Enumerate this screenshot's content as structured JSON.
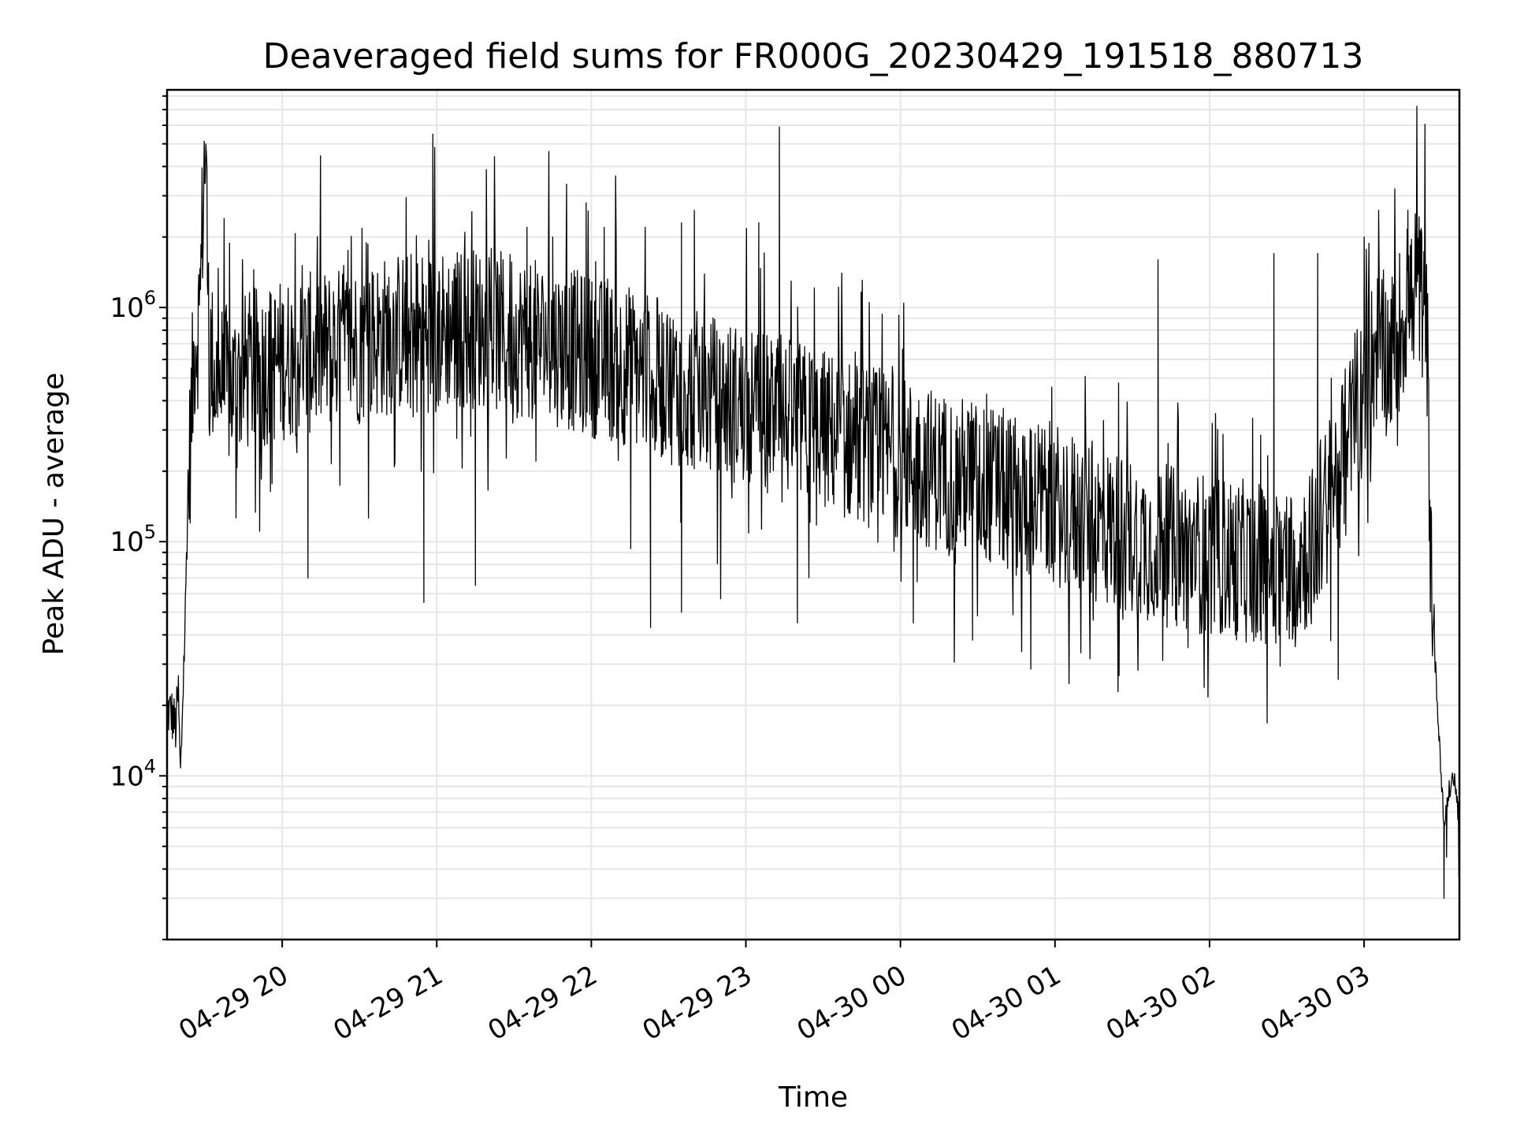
{
  "chart_data": {
    "type": "line",
    "title": "Deaveraged field sums for FR000G_20230429_191518_880713",
    "xlabel": "Time",
    "ylabel": "Peak ADU - average",
    "yscale": "log",
    "ylim": [
      2000,
      8500000
    ],
    "xlim": [
      "04-29 19:15:18",
      "04-30 03:37:00"
    ],
    "x_ticks": [
      "04-29 20",
      "04-29 21",
      "04-29 22",
      "04-29 23",
      "04-30 00",
      "04-30 01",
      "04-30 02",
      "04-30 03"
    ],
    "y_ticks": [
      {
        "base": "10",
        "exp": "4",
        "value": 10000
      },
      {
        "base": "10",
        "exp": "5",
        "value": 100000
      },
      {
        "base": "10",
        "exp": "6",
        "value": 1000000
      }
    ],
    "grid": true,
    "line_color": "#000000",
    "series": [
      {
        "points": [
          [
            "04-29 19:15:20",
            19000
          ],
          [
            "04-29 19:17:00",
            18500
          ],
          [
            "04-29 19:18:40",
            16000
          ],
          [
            "04-29 19:19:40",
            23000
          ],
          [
            "04-29 19:20:30",
            9500
          ],
          [
            "04-29 19:21:30",
            24000
          ],
          [
            "04-29 19:22:20",
            45000
          ],
          [
            "04-29 19:23:10",
            130000
          ],
          [
            "04-29 19:24:30",
            300000
          ],
          [
            "04-29 19:26:00",
            700000
          ],
          [
            "04-29 19:28:00",
            900000
          ],
          [
            "04-29 19:29:30",
            3500000
          ],
          [
            "04-29 19:30:20",
            4800000
          ],
          [
            "04-29 19:31:30",
            700000
          ],
          [
            "04-29 19:34:00",
            500000
          ],
          [
            "04-29 19:40:00",
            450000
          ],
          [
            "04-29 19:45:00",
            520000
          ],
          [
            "04-29 19:50:00",
            550000
          ],
          [
            "04-29 20:00:00",
            600000
          ],
          [
            "04-29 20:15:00",
            650000
          ],
          [
            "04-29 20:30:00",
            700000
          ],
          [
            "04-29 20:45:00",
            780000
          ],
          [
            "04-29 21:00:00",
            800000
          ],
          [
            "04-29 21:15:00",
            820000
          ],
          [
            "04-29 21:30:00",
            760000
          ],
          [
            "04-29 21:45:00",
            700000
          ],
          [
            "04-29 22:00:00",
            620000
          ],
          [
            "04-29 22:15:00",
            560000
          ],
          [
            "04-29 22:30:00",
            480000
          ],
          [
            "04-29 22:45:00",
            420000
          ],
          [
            "04-29 23:00:00",
            380000
          ],
          [
            "04-29 23:15:00",
            340000
          ],
          [
            "04-29 23:30:00",
            300000
          ],
          [
            "04-29 23:45:00",
            260000
          ],
          [
            "04-30 00:00:00",
            230000
          ],
          [
            "04-30 00:15:00",
            200000
          ],
          [
            "04-30 00:30:00",
            180000
          ],
          [
            "04-30 00:45:00",
            160000
          ],
          [
            "04-30 01:00:00",
            145000
          ],
          [
            "04-30 01:15:00",
            120000
          ],
          [
            "04-30 01:30:00",
            105000
          ],
          [
            "04-30 01:45:00",
            95000
          ],
          [
            "04-30 02:00:00",
            88000
          ],
          [
            "04-30 02:15:00",
            82000
          ],
          [
            "04-30 02:30:00",
            80000
          ],
          [
            "04-30 02:40:00",
            95000
          ],
          [
            "04-30 02:50:00",
            200000
          ],
          [
            "04-30 03:00:00",
            450000
          ],
          [
            "04-30 03:05:00",
            700000
          ],
          [
            "04-30 03:10:00",
            600000
          ],
          [
            "04-30 03:15:00",
            900000
          ],
          [
            "04-30 03:20:00",
            1200000
          ],
          [
            "04-30 03:23:00",
            1100000
          ],
          [
            "04-30 03:24:30",
            700000
          ],
          [
            "04-30 03:25:30",
            150000
          ],
          [
            "04-30 03:27:00",
            40000
          ],
          [
            "04-30 03:28:30",
            20000
          ],
          [
            "04-30 03:30:00",
            10000
          ],
          [
            "04-30 03:31:00",
            6000
          ],
          [
            "04-30 03:32:00",
            7500
          ],
          [
            "04-30 03:33:30",
            9000
          ],
          [
            "04-30 03:35:00",
            10000
          ],
          [
            "04-30 03:36:30",
            7000
          ],
          [
            "04-30 03:37:00",
            4000
          ]
        ],
        "spikes": [
          [
            "04-29 20:58:30",
            5500000
          ],
          [
            "04-29 21:58:00",
            2800000
          ],
          [
            "04-29 22:40:00",
            2600000
          ],
          [
            "04-29 23:13:00",
            5900000
          ],
          [
            "04-29 23:05:00",
            2300000
          ],
          [
            "04-29 21:35:00",
            2200000
          ],
          [
            "04-29 21:45:00",
            2000000
          ],
          [
            "04-29 22:05:00",
            2200000
          ],
          [
            "04-29 22:35:00",
            2300000
          ],
          [
            "04-30 03:17:00",
            2600000
          ],
          [
            "04-30 03:00:00",
            2000000
          ],
          [
            "04-30 02:42:00",
            1700000
          ],
          [
            "04-30 02:25:00",
            1700000
          ],
          [
            "04-30 01:40:00",
            1600000
          ]
        ],
        "dips": [
          [
            "04-29 22:23:00",
            43000
          ],
          [
            "04-29 22:35:00",
            50000
          ],
          [
            "04-29 23:20:00",
            45000
          ],
          [
            "04-30 00:28:00",
            38000
          ],
          [
            "04-30 02:20:00",
            38000
          ],
          [
            "04-30 02:10:00",
            40000
          ],
          [
            "04-29 20:55:00",
            55000
          ],
          [
            "04-29 21:15:00",
            65000
          ],
          [
            "04-29 20:10:00",
            70000
          ],
          [
            "04-30 00:05:00",
            45000
          ],
          [
            "04-30 01:50:00",
            46000
          ],
          [
            "04-30 02:30:00",
            42000
          ],
          [
            "04-30 03:31:00",
            3000
          ],
          [
            "04-30 03:32:00",
            4500
          ]
        ]
      }
    ]
  }
}
